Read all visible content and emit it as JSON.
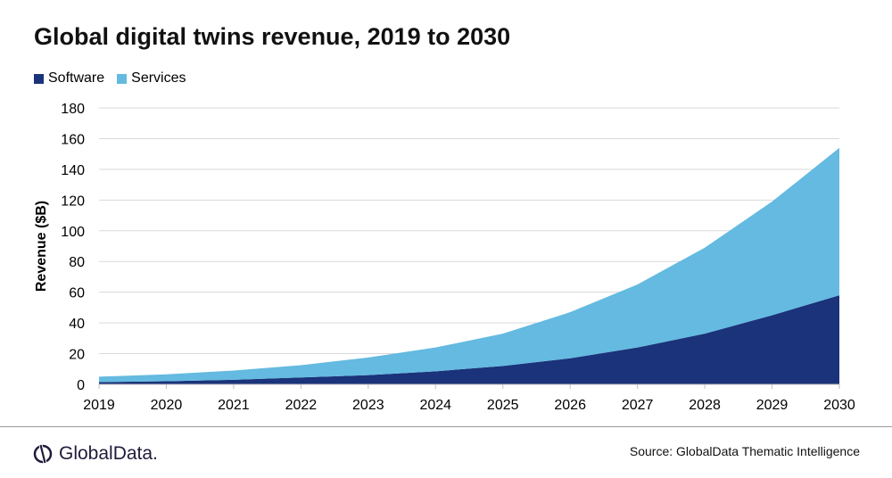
{
  "chart_data": {
    "type": "area",
    "stacked": true,
    "title": "Global digital twins revenue, 2019 to 2030",
    "xlabel": "",
    "ylabel": "Revenue ($B)",
    "ylim": [
      0,
      180
    ],
    "yticks": [
      0,
      20,
      40,
      60,
      80,
      100,
      120,
      140,
      160,
      180
    ],
    "x": [
      "2019",
      "2020",
      "2021",
      "2022",
      "2023",
      "2024",
      "2025",
      "2026",
      "2027",
      "2028",
      "2029",
      "2030"
    ],
    "series": [
      {
        "name": "Software",
        "color": "#1a337a",
        "values": [
          1.5,
          2,
          3,
          4.5,
          6,
          8.5,
          12,
          17,
          24,
          33,
          45,
          58
        ]
      },
      {
        "name": "Services",
        "color": "#64bae0",
        "values": [
          3.5,
          4.5,
          6,
          8,
          11.5,
          15.5,
          21,
          30,
          41,
          56,
          74,
          96
        ]
      }
    ],
    "grid": true,
    "legend": "top-left"
  },
  "footer": {
    "logo": "GlobalData.",
    "source": "Source: GlobalData Thematic Intelligence"
  }
}
